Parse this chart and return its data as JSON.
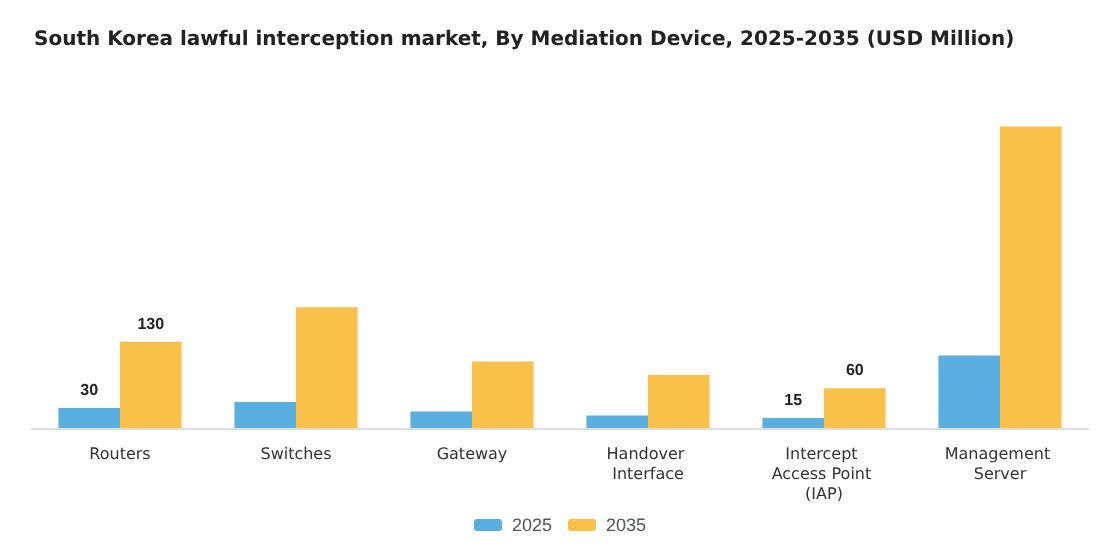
{
  "chart_data": {
    "type": "bar",
    "title": "South Korea lawful interception market, By Mediation Device, 2025-2035 (USD Million)",
    "categories": [
      "Routers",
      "Switches",
      "Gateway",
      "Handover Interface",
      "Intercept Access Point (IAP)",
      "Management Server"
    ],
    "series": [
      {
        "name": "2025",
        "color": "#5aafe0",
        "values": [
          30,
          39,
          25,
          19,
          15,
          109
        ],
        "value_labels": [
          "30",
          null,
          null,
          null,
          "15",
          null
        ]
      },
      {
        "name": "2035",
        "color": "#f9c04a",
        "values": [
          130,
          182,
          100,
          80,
          60,
          454
        ],
        "value_labels": [
          "130",
          null,
          null,
          null,
          "60",
          null
        ]
      }
    ],
    "legend": "bottom"
  }
}
